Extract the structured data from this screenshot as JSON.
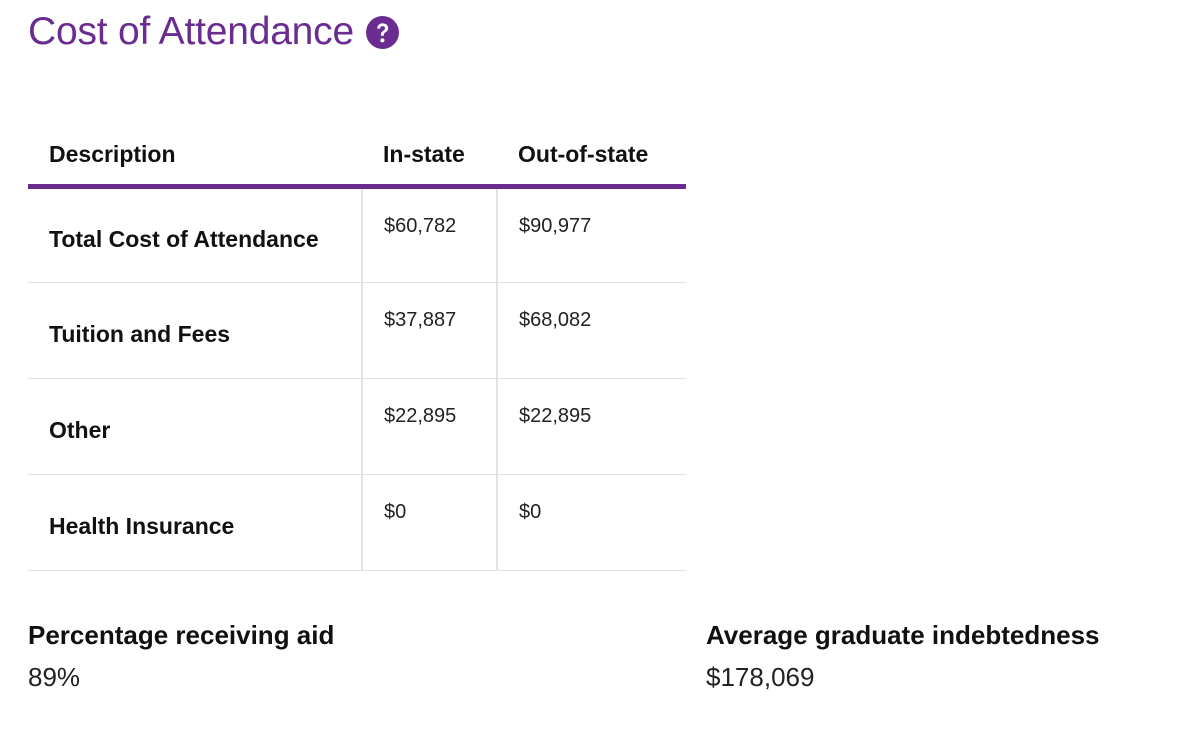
{
  "page": {
    "title": "Cost of Attendance",
    "accent_color": "#6a2c91",
    "help_icon": "question-circle-icon"
  },
  "table": {
    "headers": [
      "Description",
      "In-state",
      "Out-of-state"
    ],
    "rows": [
      {
        "description": "Total Cost of Attendance",
        "in_state": "$60,782",
        "out_of_state": "$90,977"
      },
      {
        "description": "Tuition and Fees",
        "in_state": "$37,887",
        "out_of_state": "$68,082"
      },
      {
        "description": "Other",
        "in_state": "$22,895",
        "out_of_state": "$22,895"
      },
      {
        "description": "Health Insurance",
        "in_state": "$0",
        "out_of_state": "$0"
      }
    ]
  },
  "stats": {
    "aid": {
      "label": "Percentage receiving aid",
      "value": "89%"
    },
    "debt": {
      "label": "Average graduate indebtedness",
      "value": "$178,069"
    }
  }
}
